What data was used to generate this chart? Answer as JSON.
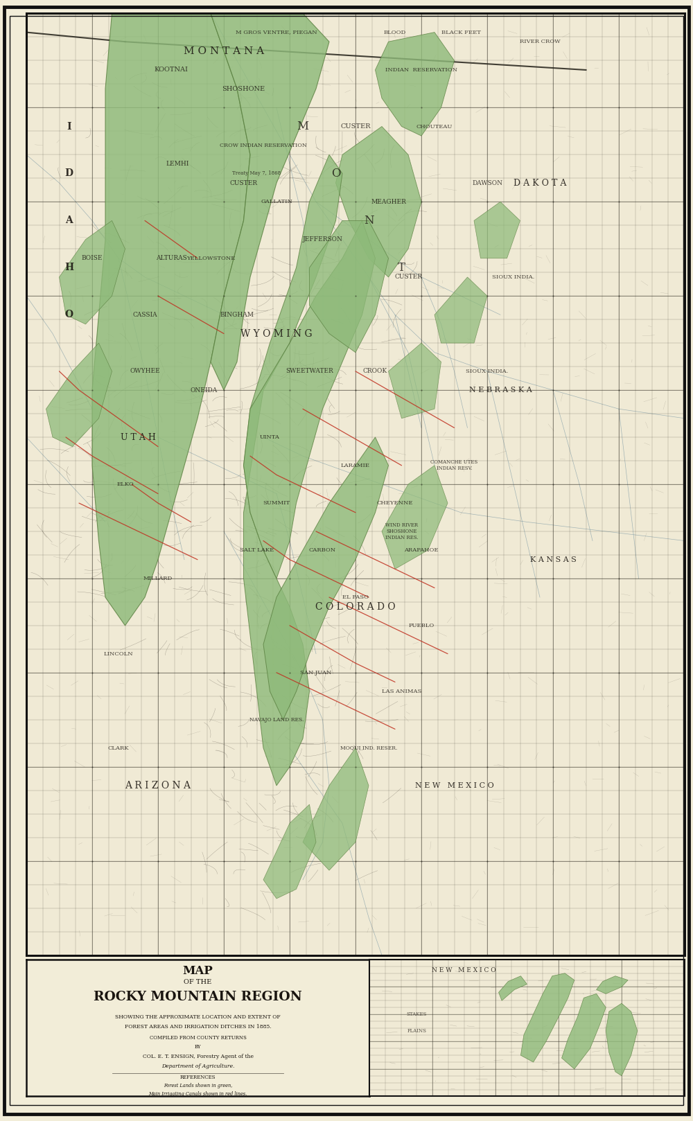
{
  "title_line1": "MAP",
  "title_line2": "OF THE",
  "title_line3": "ROCKY MOUNTAIN REGION",
  "subtitle1": "SHOWING THE APPROXIMATE LOCATION AND EXTENT OF",
  "subtitle2": "FOREST AREAS AND IRRIGATION DITCHES IN 1885.",
  "subtitle3": "COMPILED FROM COUNTY RETURNS",
  "subtitle4": "BY",
  "author": "COL. E. T. ENSIGN, Forestry Agent of the",
  "dept": "Department of Agriculture.",
  "ref_header": "REFERENCES",
  "ref1": "Forest Lands shown in green,",
  "ref2": "Main Irrigating Canals shown in red lines.",
  "bg_color": "#f2edd8",
  "map_bg": "#f0ead5",
  "border_color": "#111111",
  "text_color": "#1a1510",
  "forest_green_fill": "#8eba7a",
  "forest_green_edge": "#5a8040",
  "forest_green_dark": "#6a9a5a",
  "irrigation_red": "#c03020",
  "map_line_dark": "#2a2820",
  "map_line_med": "#555040",
  "grid_color": "#333025",
  "survey_color": "#222018",
  "river_color": "#7090a0",
  "topo_color": "#403830"
}
